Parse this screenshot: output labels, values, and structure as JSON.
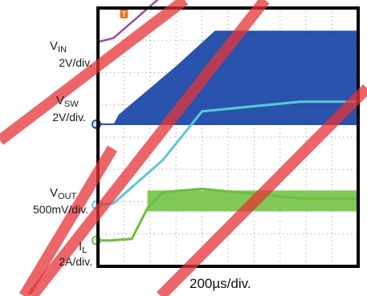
{
  "chart_data": {
    "type": "line",
    "title": "",
    "timebase": "200µs/div.",
    "series": [
      {
        "name": "V",
        "sub": "IN",
        "scale": "2V/div.",
        "marker": "",
        "color": "#9a48a6",
        "x": [
          0,
          0.6,
          3.0,
          4.5,
          10
        ],
        "y": [
          0,
          0.12,
          1.8,
          2.9,
          2.9
        ]
      },
      {
        "name": "V",
        "sub": "SW",
        "scale": "2V/div.",
        "marker": "3",
        "color": "#1e4aa8",
        "x": [
          0,
          0.6,
          0.8,
          3.0,
          4.5,
          10
        ],
        "y": [
          0,
          0,
          0.3,
          1.8,
          2.9,
          2.9
        ]
      },
      {
        "name": "V",
        "sub": "OUT",
        "scale": "500mV/div.",
        "marker": "2",
        "color": "#5bc8d6",
        "x": [
          0,
          0.6,
          2.5,
          4.0,
          7.8,
          10
        ],
        "y": [
          0,
          0.05,
          1.4,
          2.9,
          3.2,
          3.2
        ]
      },
      {
        "name": "I",
        "sub": "L",
        "scale": "2A/div.",
        "marker": "1",
        "color": "#6ac03c",
        "x": [
          0,
          0.5,
          1.3,
          1.9,
          2.5,
          4.0,
          7.8,
          10
        ],
        "y": [
          0,
          0,
          0.05,
          1.0,
          1.5,
          1.6,
          1.3,
          1.3
        ]
      }
    ],
    "xlim": [
      0,
      10
    ],
    "ylim": [
      -4,
      4
    ],
    "divisions": {
      "x": 10,
      "y": 8
    },
    "grid": true,
    "trigger_marker": "T"
  },
  "colors": {
    "screen_bg": "#ffffff",
    "grid": "#9a9a9a",
    "frame": "#000000",
    "watermark": "#e63338"
  }
}
